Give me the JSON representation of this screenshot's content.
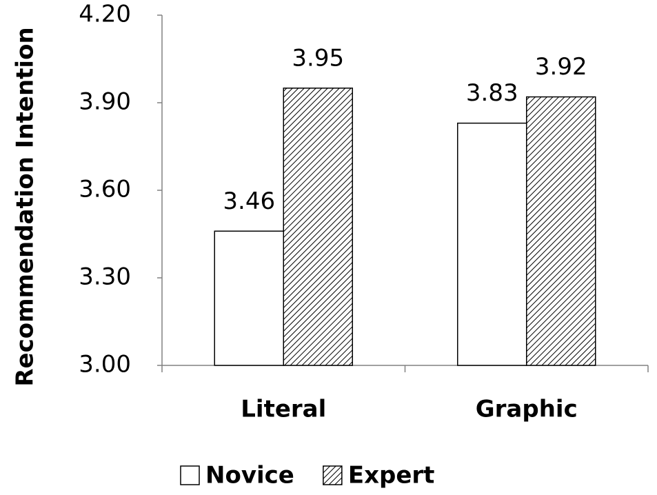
{
  "chart_data": {
    "type": "bar",
    "y_label": "Recommendation Intention",
    "categories": [
      "Literal",
      "Graphic"
    ],
    "series": [
      {
        "name": "Novice",
        "color": "#ffffff",
        "values": [
          3.46,
          3.83
        ]
      },
      {
        "name": "Expert",
        "color": "#000000",
        "pattern": "hatch",
        "values": [
          3.95,
          3.92
        ]
      }
    ],
    "ylim": [
      3.0,
      4.2
    ],
    "yticks": [
      {
        "value": 3.0,
        "label": "3.00"
      },
      {
        "value": 3.3,
        "label": "3.30"
      },
      {
        "value": 3.6,
        "label": "3.60"
      },
      {
        "value": 3.9,
        "label": "3.90"
      },
      {
        "value": 4.2,
        "label": "4.20"
      }
    ],
    "legend": "bottom"
  }
}
